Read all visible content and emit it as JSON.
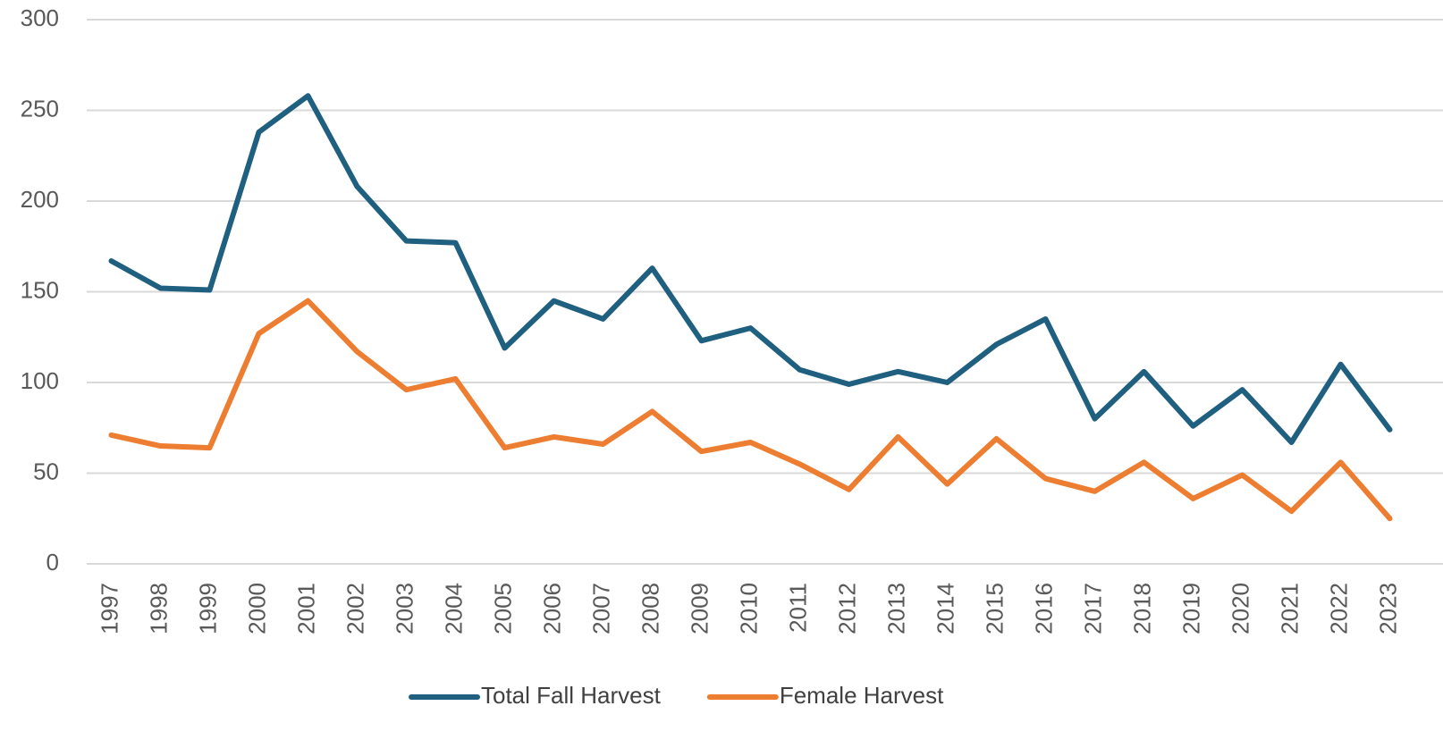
{
  "chart_data": {
    "type": "line",
    "categories": [
      "1997",
      "1998",
      "1999",
      "2000",
      "2001",
      "2002",
      "2003",
      "2004",
      "2005",
      "2006",
      "2007",
      "2008",
      "2009",
      "2010",
      "2011",
      "2012",
      "2013",
      "2014",
      "2015",
      "2016",
      "2017",
      "2018",
      "2019",
      "2020",
      "2021",
      "2022",
      "2023"
    ],
    "series": [
      {
        "name": "Total Fall Harvest",
        "color": "#1f5f7f",
        "values": [
          167,
          152,
          151,
          238,
          258,
          208,
          178,
          177,
          119,
          145,
          135,
          163,
          123,
          130,
          107,
          99,
          106,
          100,
          121,
          135,
          80,
          106,
          76,
          96,
          67,
          110,
          74
        ]
      },
      {
        "name": "Female Harvest",
        "color": "#ed7d31",
        "values": [
          71,
          65,
          64,
          127,
          145,
          117,
          96,
          102,
          64,
          70,
          66,
          84,
          62,
          67,
          55,
          41,
          70,
          44,
          69,
          47,
          40,
          56,
          36,
          49,
          29,
          56,
          25
        ]
      }
    ],
    "ylim": [
      0,
      300
    ],
    "yticks": [
      0,
      50,
      100,
      150,
      200,
      250,
      300
    ],
    "grid": true,
    "legend": "bottom"
  }
}
